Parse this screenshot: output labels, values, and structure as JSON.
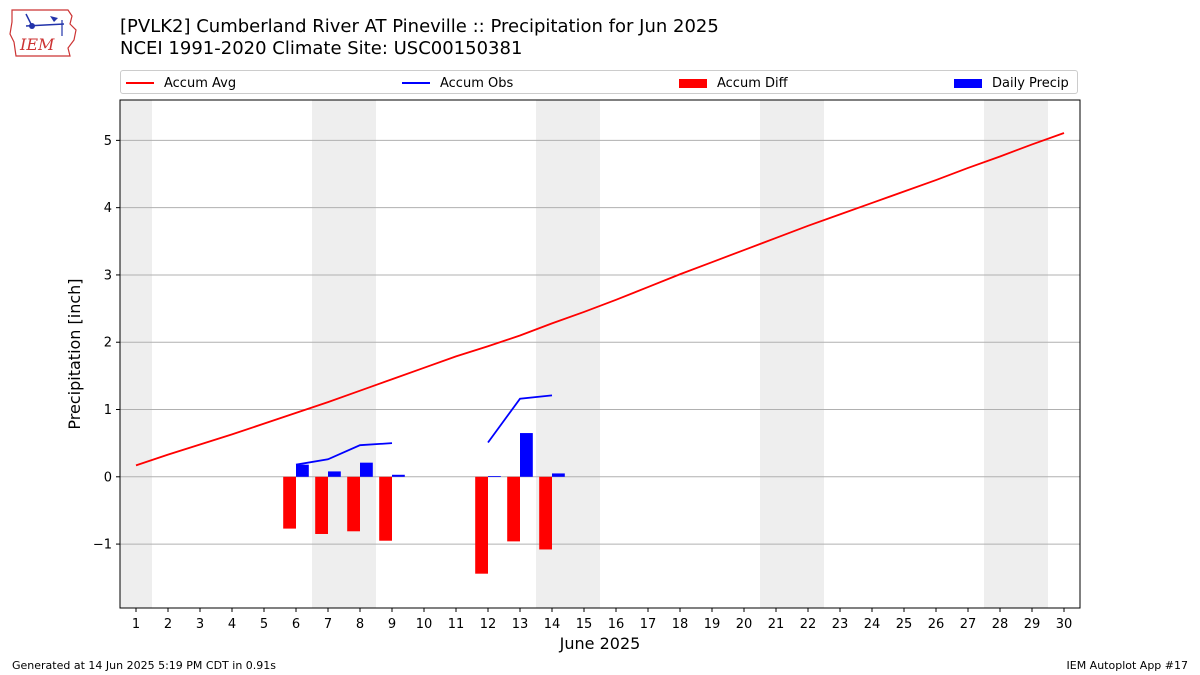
{
  "header": {
    "title_line1": "[PVLK2] Cumberland River  AT Pineville :: Precipitation for Jun 2025",
    "title_line2": "NCEI 1991-2020 Climate Site: USC00150381"
  },
  "logo": {
    "text": "IEM",
    "icon": "iem-iowa-logo-icon"
  },
  "legend": {
    "items": [
      {
        "label": "Accum Avg",
        "kind": "line",
        "color": "#ff0000"
      },
      {
        "label": "Accum Obs",
        "kind": "line",
        "color": "#0000ff"
      },
      {
        "label": "Accum Diff",
        "kind": "bar",
        "color": "#ff0000"
      },
      {
        "label": "Daily Precip",
        "kind": "bar",
        "color": "#0000ff"
      }
    ]
  },
  "footer": {
    "left": "Generated at 14 Jun 2025 5:19 PM CDT in 0.91s",
    "right": "IEM Autoplot App #17"
  },
  "chart_data": {
    "type": "bar",
    "xlabel": "June 2025",
    "ylabel": "Precipitation [inch]",
    "xlim": [
      0.5,
      30.5
    ],
    "ylim": [
      -1.95,
      5.6
    ],
    "x_ticks": [
      1,
      2,
      3,
      4,
      5,
      6,
      7,
      8,
      9,
      10,
      11,
      12,
      13,
      14,
      15,
      16,
      17,
      18,
      19,
      20,
      21,
      22,
      23,
      24,
      25,
      26,
      27,
      28,
      29,
      30
    ],
    "y_ticks": [
      -1,
      0,
      1,
      2,
      3,
      4,
      5
    ],
    "y_tick_labels": [
      "−1",
      "0",
      "1",
      "2",
      "3",
      "4",
      "5"
    ],
    "grid": "y",
    "weekend_shading": [
      [
        0.5,
        1.5
      ],
      [
        6.5,
        8.5
      ],
      [
        13.5,
        15.5
      ],
      [
        20.5,
        22.5
      ],
      [
        27.5,
        29.5
      ]
    ],
    "shading_color": "#eeeeee",
    "accum_avg": {
      "name": "Accum Avg",
      "color": "#ff0000",
      "x": [
        1,
        2,
        3,
        4,
        5,
        6,
        7,
        8,
        9,
        10,
        11,
        12,
        13,
        14,
        15,
        16,
        17,
        18,
        19,
        20,
        21,
        22,
        23,
        24,
        25,
        26,
        27,
        28,
        29,
        30
      ],
      "values": [
        0.17,
        0.33,
        0.48,
        0.63,
        0.79,
        0.95,
        1.11,
        1.28,
        1.45,
        1.62,
        1.79,
        1.94,
        2.1,
        2.28,
        2.45,
        2.63,
        2.82,
        3.01,
        3.19,
        3.37,
        3.55,
        3.73,
        3.9,
        4.07,
        4.24,
        4.41,
        4.59,
        4.76,
        4.94,
        5.11
      ]
    },
    "accum_obs": {
      "name": "Accum Obs",
      "color": "#0000ff",
      "segments": [
        {
          "x": [
            6,
            7,
            8,
            9
          ],
          "values": [
            0.18,
            0.26,
            0.47,
            0.5
          ]
        },
        {
          "x": [
            12,
            13,
            14
          ],
          "values": [
            0.51,
            1.16,
            1.21
          ]
        }
      ]
    },
    "accum_diff": {
      "name": "Accum Diff",
      "color": "#ff0000",
      "x": [
        6,
        7,
        8,
        9,
        12,
        13,
        14
      ],
      "values": [
        -0.77,
        -0.85,
        -0.81,
        -0.95,
        -1.44,
        -0.96,
        -1.08
      ]
    },
    "daily_precip": {
      "name": "Daily Precip",
      "color": "#0000ff",
      "x": [
        6,
        7,
        8,
        9,
        12,
        13,
        14
      ],
      "values": [
        0.18,
        0.08,
        0.21,
        0.03,
        0.01,
        0.65,
        0.05
      ]
    }
  }
}
